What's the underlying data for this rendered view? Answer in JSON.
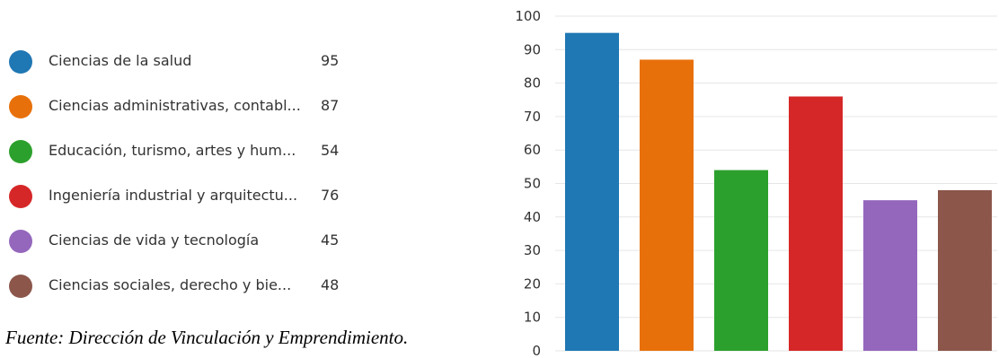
{
  "chart_data": {
    "type": "bar",
    "categories": [
      "Ciencias de la salud",
      "Ciencias administrativas, contabl...",
      "Educación, turismo, artes y hum...",
      "Ingeniería industrial y arquitectu...",
      "Ciencias de vida y tecnología",
      "Ciencias sociales, derecho y bie..."
    ],
    "values": [
      95,
      87,
      54,
      76,
      45,
      48
    ],
    "value_labels": [
      "95",
      "87",
      "54",
      "76",
      "45",
      "48"
    ],
    "colors": [
      "#1f77b4",
      "#e8700a",
      "#2ca02c",
      "#d62728",
      "#9467bd",
      "#8c564b"
    ],
    "ylim": [
      0,
      100
    ],
    "yticks": [
      "0",
      "10",
      "20",
      "30",
      "40",
      "50",
      "60",
      "70",
      "80",
      "90",
      "100"
    ],
    "grid": true,
    "legend_placement": "left"
  },
  "source_note": "Fuente: Dirección de Vinculación y Emprendimiento."
}
